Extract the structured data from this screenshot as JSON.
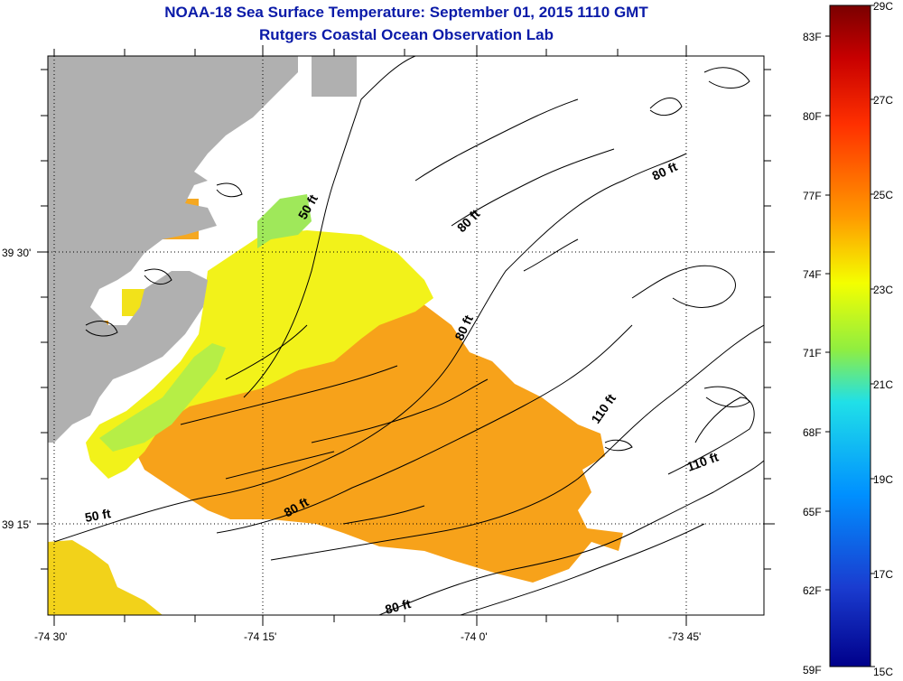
{
  "title": {
    "line1": "NOAA-18 Sea Surface Temperature:  September 01, 2015 1110 GMT",
    "line2": "Rutgers Coastal Ocean Observation Lab"
  },
  "axes": {
    "x_ticks": [
      "-74 30'",
      "-74 15'",
      "-74 0'",
      "-73 45'"
    ],
    "y_ticks": [
      "39 30'",
      "39 15'"
    ]
  },
  "contour_labels": [
    "50 ft",
    "80 ft",
    "80 ft",
    "80 ft",
    "110 ft",
    "110 ft",
    "80 ft",
    "50 ft",
    "80 ft"
  ],
  "colorbar": {
    "celsius": [
      "29C",
      "27C",
      "25C",
      "23C",
      "21C",
      "19C",
      "17C",
      "15C"
    ],
    "fahrenheit": [
      "83F",
      "80F",
      "77F",
      "74F",
      "71F",
      "68F",
      "65F",
      "62F",
      "59F"
    ],
    "stops": [
      "#7a0000",
      "#c80000",
      "#ff3000",
      "#ff9a00",
      "#f4ff00",
      "#90ee40",
      "#20e0e8",
      "#0090ff",
      "#1a3cd0",
      "#00008a"
    ]
  },
  "colors": {
    "land": "#b0b0b0",
    "sst_orange": "#f7a21a",
    "sst_yellow": "#f2f21a",
    "sst_green": "#9fe85a",
    "title": "#0a1aa8"
  }
}
